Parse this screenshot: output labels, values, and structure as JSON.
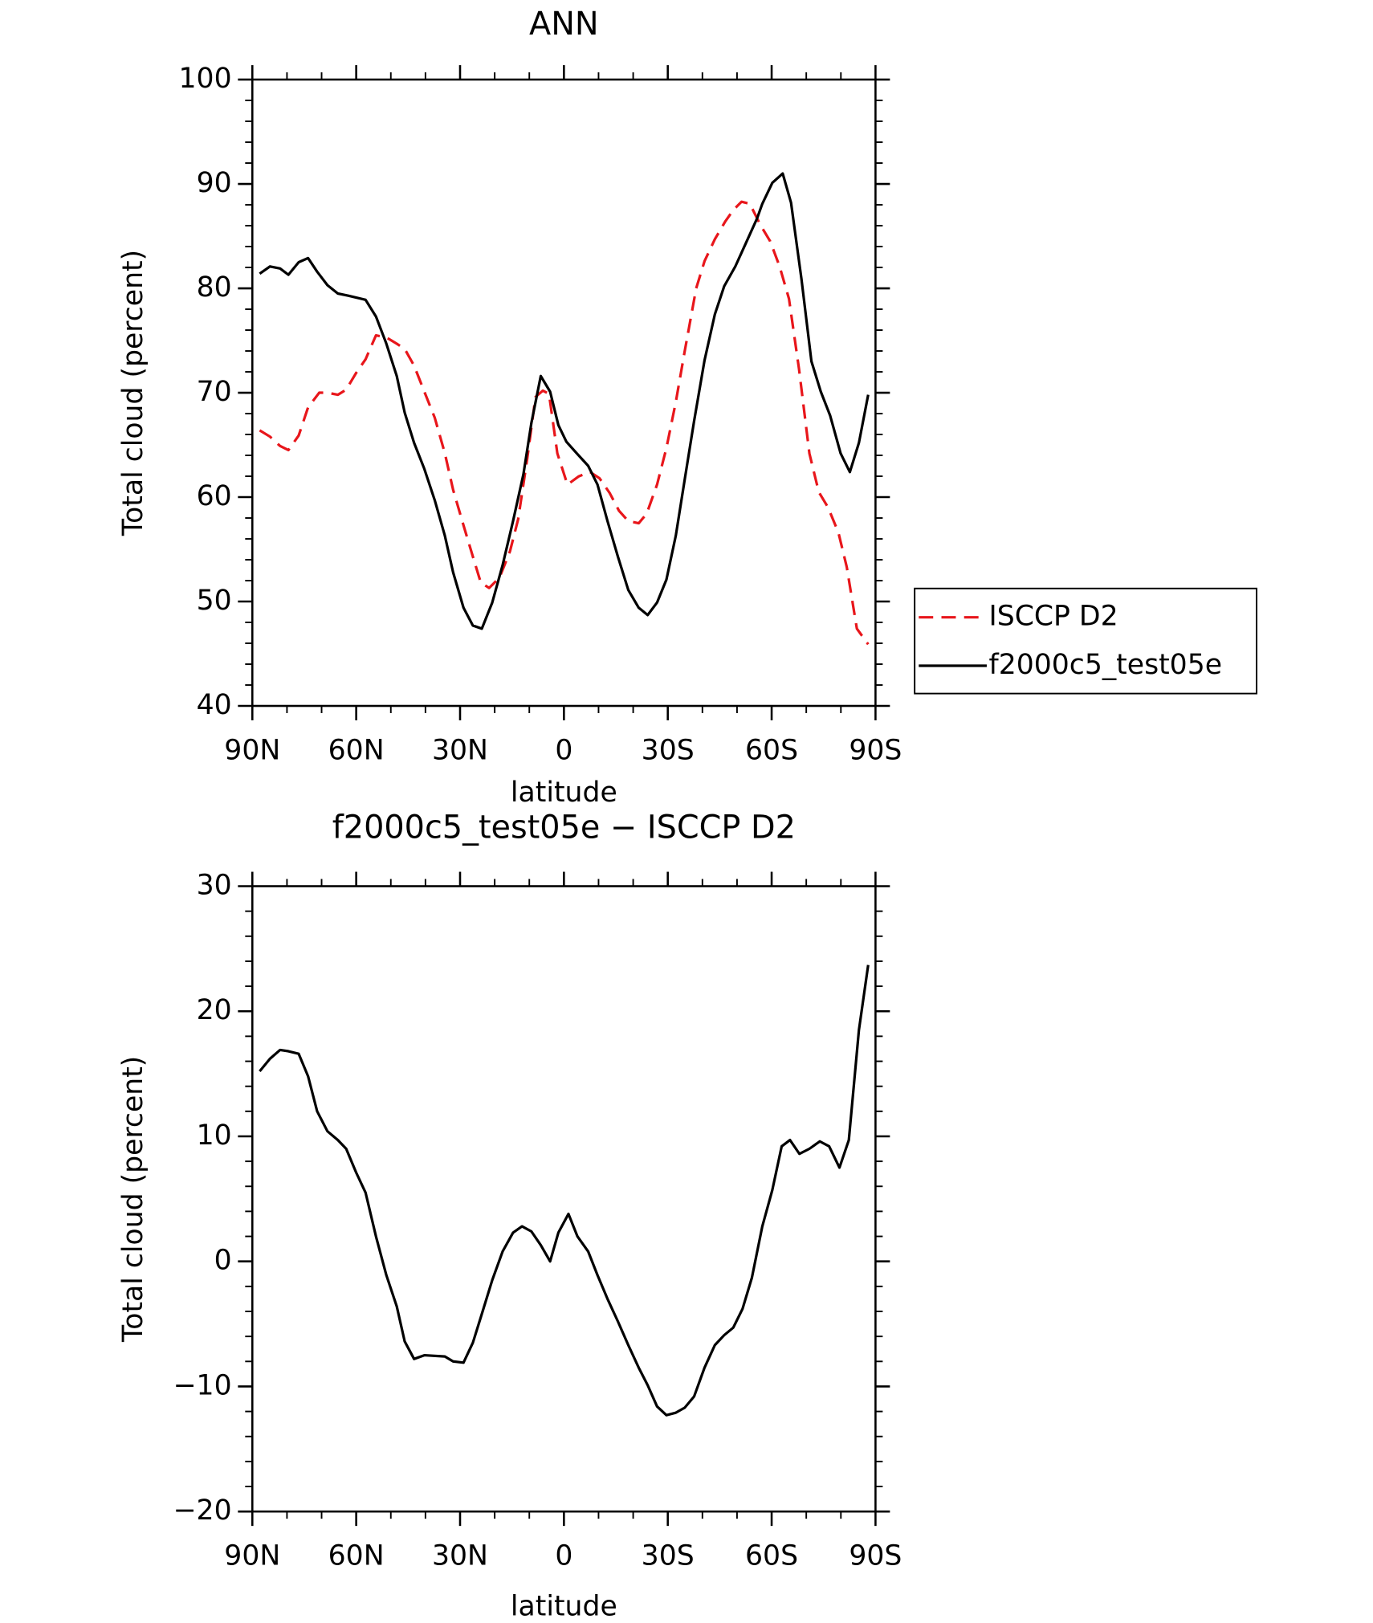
{
  "chart_data": [
    {
      "type": "line",
      "title": "ANN",
      "xlabel": "latitude",
      "ylabel": "Total cloud (percent)",
      "xlim": [
        90,
        -90
      ],
      "xticks": [
        {
          "value": 90,
          "label": "90N"
        },
        {
          "value": 60,
          "label": "60N"
        },
        {
          "value": 30,
          "label": "30N"
        },
        0,
        {
          "value": -30,
          "label": "30S"
        },
        {
          "value": -60,
          "label": "60S"
        },
        {
          "value": -90,
          "label": "90S"
        }
      ],
      "ylim": [
        40,
        100
      ],
      "yticks": [
        40,
        50,
        60,
        70,
        80,
        90,
        100
      ],
      "legend": "right",
      "series": [
        {
          "name": "ISCCP D2",
          "color": "#e8161b",
          "line_style": "dashed",
          "x": [
            87.9,
            84.9,
            82.0,
            79.6,
            76.6,
            73.9,
            70.7,
            68.3,
            65.3,
            62.9,
            60.0,
            57.3,
            54.3,
            51.3,
            48.3,
            46.0,
            43.3,
            40.3,
            37.3,
            34.4,
            32.0,
            29.0,
            26.3,
            24.0,
            21.6,
            18.6,
            15.6,
            13.2,
            10.6,
            8.2,
            6.1,
            4.3,
            1.9,
            -1.0,
            -4.3,
            -7.6,
            -10.3,
            -13.2,
            -15.9,
            -18.6,
            -21.6,
            -23.9,
            -26.9,
            -29.6,
            -32.3,
            -34.9,
            -38.2,
            -40.6,
            -43.6,
            -46.6,
            -48.9,
            -51.3,
            -53.7,
            -56.7,
            -59.6,
            -62.3,
            -65.0,
            -67.9,
            -70.9,
            -73.6,
            -76.3,
            -79.3,
            -81.7,
            -84.6,
            -87.9
          ],
          "values": [
            66.4,
            65.8,
            64.9,
            64.5,
            65.9,
            68.6,
            70.0,
            70.0,
            69.8,
            70.3,
            71.9,
            73.2,
            75.5,
            75.3,
            74.7,
            74.2,
            72.6,
            70.1,
            67.6,
            64.2,
            60.7,
            57.3,
            54.3,
            51.8,
            51.3,
            52.3,
            54.8,
            57.9,
            63.7,
            69.6,
            70.2,
            69.9,
            64.2,
            61.2,
            62.0,
            62.4,
            61.8,
            60.4,
            58.7,
            57.7,
            57.5,
            58.4,
            61.2,
            64.7,
            69.1,
            74.0,
            80.0,
            82.6,
            84.7,
            86.4,
            87.5,
            88.3,
            88.1,
            86.1,
            84.5,
            82.1,
            79.0,
            72.3,
            64.2,
            60.5,
            59.0,
            56.6,
            53.3,
            47.4,
            45.9
          ]
        },
        {
          "name": "f2000c5_test05e",
          "color": "#000000",
          "line_style": "solid",
          "x": [
            87.9,
            84.9,
            82.0,
            79.6,
            76.6,
            73.9,
            71.3,
            68.3,
            65.3,
            62.3,
            57.3,
            54.3,
            51.3,
            48.3,
            46.0,
            43.3,
            40.3,
            37.3,
            34.4,
            32.0,
            29.0,
            26.3,
            23.7,
            20.7,
            17.7,
            14.7,
            11.7,
            9.4,
            6.7,
            4.0,
            1.6,
            -0.7,
            -3.7,
            -7.0,
            -9.7,
            -12.6,
            -15.6,
            -18.6,
            -21.6,
            -24.2,
            -26.9,
            -29.6,
            -32.3,
            -34.9,
            -37.6,
            -40.6,
            -43.6,
            -46.3,
            -49.5,
            -52.5,
            -55.8,
            -57.3,
            -60.2,
            -63.2,
            -65.6,
            -68.6,
            -71.5,
            -74.2,
            -76.9,
            -79.9,
            -82.6,
            -85.2,
            -87.9
          ],
          "values": [
            81.4,
            82.1,
            81.9,
            81.3,
            82.5,
            82.9,
            81.6,
            80.3,
            79.5,
            79.3,
            78.9,
            77.3,
            74.7,
            71.6,
            68.1,
            65.2,
            62.7,
            59.7,
            56.3,
            52.8,
            49.4,
            47.7,
            47.4,
            49.9,
            53.5,
            57.7,
            62.2,
            67.1,
            71.6,
            70.1,
            66.9,
            65.3,
            64.2,
            63.0,
            61.2,
            57.7,
            54.3,
            51.1,
            49.4,
            48.7,
            49.9,
            52.1,
            56.3,
            61.7,
            67.3,
            73.1,
            77.5,
            80.2,
            82.1,
            84.3,
            86.7,
            88.1,
            90.1,
            91.0,
            88.2,
            80.9,
            73.0,
            70.1,
            67.8,
            64.2,
            62.4,
            65.2,
            69.8
          ]
        }
      ]
    },
    {
      "type": "line",
      "title": "f2000c5_test05e − ISCCP D2",
      "xlabel": "latitude",
      "ylabel": "Total cloud (percent)",
      "xlim": [
        90,
        -90
      ],
      "xticks": [
        {
          "value": 90,
          "label": "90N"
        },
        {
          "value": 60,
          "label": "60N"
        },
        {
          "value": 30,
          "label": "30N"
        },
        0,
        {
          "value": -30,
          "label": "30S"
        },
        {
          "value": -60,
          "label": "60S"
        },
        {
          "value": -90,
          "label": "90S"
        }
      ],
      "ylim": [
        -20,
        30
      ],
      "yticks": [
        {
          "value": -20,
          "label": "−20"
        },
        {
          "value": -10,
          "label": "−10"
        },
        0,
        10,
        20,
        30
      ],
      "series": [
        {
          "color": "#000000",
          "line_style": "solid",
          "x": [
            87.9,
            84.9,
            82.0,
            79.6,
            76.6,
            73.9,
            71.3,
            68.3,
            65.3,
            62.9,
            60.0,
            57.3,
            54.3,
            51.3,
            48.3,
            46.0,
            43.3,
            40.3,
            34.4,
            32.0,
            29.0,
            26.3,
            23.7,
            20.7,
            17.7,
            14.7,
            12.1,
            9.4,
            6.7,
            4.0,
            1.6,
            -1.3,
            -3.9,
            -7.0,
            -9.7,
            -12.6,
            -15.6,
            -18.6,
            -21.6,
            -24.2,
            -26.9,
            -29.6,
            -32.3,
            -34.9,
            -37.6,
            -40.6,
            -43.6,
            -46.3,
            -48.9,
            -51.6,
            -54.3,
            -57.3,
            -60.2,
            -62.9,
            -65.3,
            -68.0,
            -70.9,
            -73.9,
            -76.6,
            -79.6,
            -82.3,
            -85.2,
            -87.9
          ],
          "values": [
            15.2,
            16.2,
            16.9,
            16.8,
            16.6,
            14.8,
            12.0,
            10.4,
            9.7,
            9.0,
            7.1,
            5.5,
            2.0,
            -1.1,
            -3.6,
            -6.4,
            -7.8,
            -7.5,
            -7.6,
            -8.0,
            -8.1,
            -6.5,
            -4.2,
            -1.5,
            0.8,
            2.3,
            2.8,
            2.4,
            1.3,
            0.0,
            2.3,
            3.8,
            2.0,
            0.8,
            -1.1,
            -3.0,
            -4.8,
            -6.7,
            -8.5,
            -9.9,
            -11.6,
            -12.3,
            -12.1,
            -11.7,
            -10.8,
            -8.5,
            -6.7,
            -5.9,
            -5.3,
            -3.8,
            -1.3,
            2.8,
            5.7,
            9.2,
            9.7,
            8.6,
            9.0,
            9.6,
            9.2,
            7.5,
            9.7,
            18.5,
            23.7
          ]
        }
      ]
    }
  ]
}
